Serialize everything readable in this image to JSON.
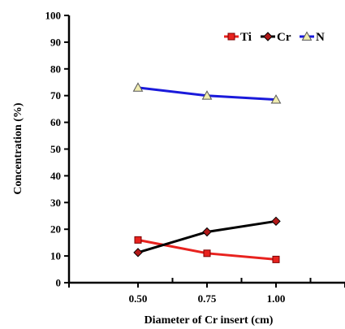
{
  "chart_data": {
    "type": "line",
    "title": "",
    "xlabel": "Diameter of Cr insert (cm)",
    "ylabel": "Concentration (%)",
    "x": [
      0.5,
      0.75,
      1.0
    ],
    "x_tick_labels": [
      "0.50",
      "0.75",
      "1.00"
    ],
    "xlim": [
      0.25,
      1.25
    ],
    "ylim": [
      0,
      100
    ],
    "y_ticks": [
      0,
      10,
      20,
      30,
      40,
      50,
      60,
      70,
      80,
      90,
      100
    ],
    "grid": false,
    "legend_position": "top-right",
    "series": [
      {
        "name": "Ti",
        "values": [
          16,
          11,
          8.7
        ],
        "color": "#e8221e",
        "marker": "square"
      },
      {
        "name": "Cr",
        "values": [
          11.3,
          19,
          23
        ],
        "color": "#000000",
        "marker": "diamond"
      },
      {
        "name": "N",
        "values": [
          73,
          70,
          68.5
        ],
        "color": "#1a1adb",
        "marker": "triangle"
      }
    ]
  }
}
